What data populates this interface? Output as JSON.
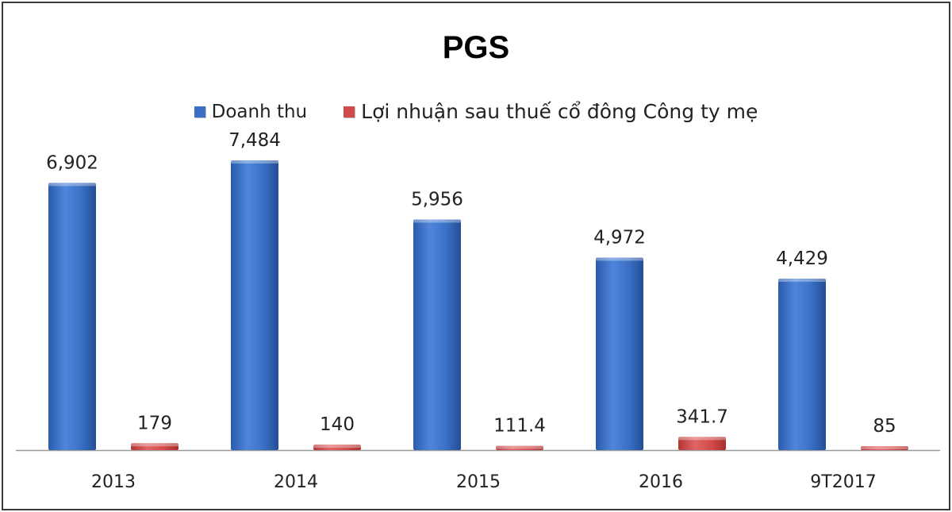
{
  "chart_data": {
    "type": "bar",
    "title": "PGS",
    "categories": [
      "2013",
      "2014",
      "2015",
      "2016",
      "9T2017"
    ],
    "series": [
      {
        "name": "Doanh thu",
        "values": [
          6902,
          7484,
          5956,
          4972,
          4429
        ],
        "labels": [
          "6,902",
          "7,484",
          "5,956",
          "4,972",
          "4,429"
        ],
        "color": "#3a6fc4"
      },
      {
        "name": "Lợi nhuận sau thuế cổ đông Công ty mẹ",
        "values": [
          179,
          140,
          111.4,
          341.7,
          85
        ],
        "labels": [
          "179",
          "140",
          "111.4",
          "341.7",
          "85"
        ],
        "color": "#d24a4a"
      }
    ],
    "xlabel": "",
    "ylabel": "",
    "ylim": [
      0,
      9000
    ],
    "grid": false,
    "legend_position": "top"
  }
}
